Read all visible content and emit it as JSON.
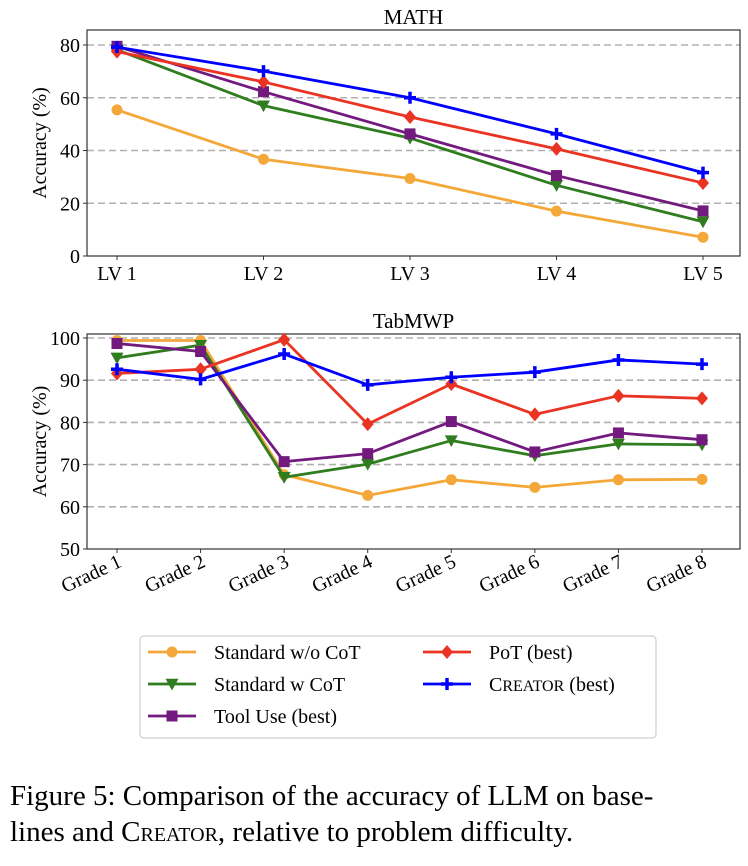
{
  "chart_data": [
    {
      "type": "line",
      "title": "MATH",
      "xlabel": "",
      "ylabel": "Accuracy (%)",
      "categories": [
        "LV 1",
        "LV 2",
        "LV 3",
        "LV 4",
        "LV 5"
      ],
      "ylim": [
        0,
        80
      ],
      "yticks": [
        0,
        20,
        40,
        60,
        80
      ],
      "grid": "horizontal dashed",
      "series": [
        {
          "name": "Standard w/o CoT",
          "color": "#f5a83a",
          "marker": "circle",
          "values": [
            55.4,
            36.7,
            29.4,
            17.0,
            7.1
          ]
        },
        {
          "name": "Standard w CoT",
          "color": "#2f7d1e",
          "marker": "triangle-down",
          "values": [
            78.2,
            57.0,
            44.7,
            26.8,
            13.0
          ]
        },
        {
          "name": "Tool Use (best)",
          "color": "#731a7e",
          "marker": "square",
          "values": [
            79.5,
            62.3,
            46.3,
            30.5,
            17.1
          ]
        },
        {
          "name": "PoT (best)",
          "color": "#ea3323",
          "marker": "diamond",
          "values": [
            77.5,
            66.0,
            52.7,
            40.6,
            27.7
          ]
        },
        {
          "name": "Creator (best)",
          "color": "#0000ff",
          "marker": "plus",
          "values": [
            79.2,
            70.1,
            60.0,
            46.3,
            31.6
          ]
        }
      ]
    },
    {
      "type": "line",
      "title": "TabMWP",
      "xlabel": "",
      "ylabel": "Accuracy (%)",
      "categories": [
        "Grade 1",
        "Grade 2",
        "Grade 3",
        "Grade 4",
        "Grade 5",
        "Grade 6",
        "Grade 7",
        "Grade 8"
      ],
      "ylim": [
        50,
        100
      ],
      "yticks": [
        50,
        60,
        70,
        80,
        90,
        100
      ],
      "grid": "horizontal dashed",
      "series": [
        {
          "name": "Standard w/o CoT",
          "color": "#f5a83a",
          "marker": "circle",
          "values": [
            99.4,
            99.4,
            67.6,
            62.7,
            66.4,
            64.6,
            66.4,
            66.5
          ]
        },
        {
          "name": "Standard w CoT",
          "color": "#2f7d1e",
          "marker": "triangle-down",
          "values": [
            95.3,
            98.3,
            67.0,
            70.1,
            75.7,
            72.1,
            74.9,
            74.7
          ]
        },
        {
          "name": "Tool Use (best)",
          "color": "#731a7e",
          "marker": "square",
          "values": [
            98.7,
            96.8,
            70.7,
            72.6,
            80.2,
            73.0,
            77.5,
            75.9
          ]
        },
        {
          "name": "PoT (best)",
          "color": "#ea3323",
          "marker": "diamond",
          "values": [
            91.6,
            92.6,
            99.6,
            79.6,
            89.1,
            81.9,
            86.3,
            85.7
          ]
        },
        {
          "name": "Creator (best)",
          "color": "#0000ff",
          "marker": "plus",
          "values": [
            92.6,
            90.2,
            96.2,
            88.9,
            90.7,
            91.9,
            94.8,
            93.8
          ]
        }
      ]
    }
  ],
  "legend": {
    "placement": "bottom-center",
    "entries": [
      "Standard w/o CoT",
      "Standard w CoT",
      "Tool Use (best)",
      "PoT (best)",
      "Creator (best)"
    ]
  },
  "caption": {
    "prefix": "Figure 5: Comparison of the accuracy of LLM on base-",
    "line2_start": "lines and ",
    "method": "Creator",
    "line2_end": ", relative to problem difficulty."
  }
}
